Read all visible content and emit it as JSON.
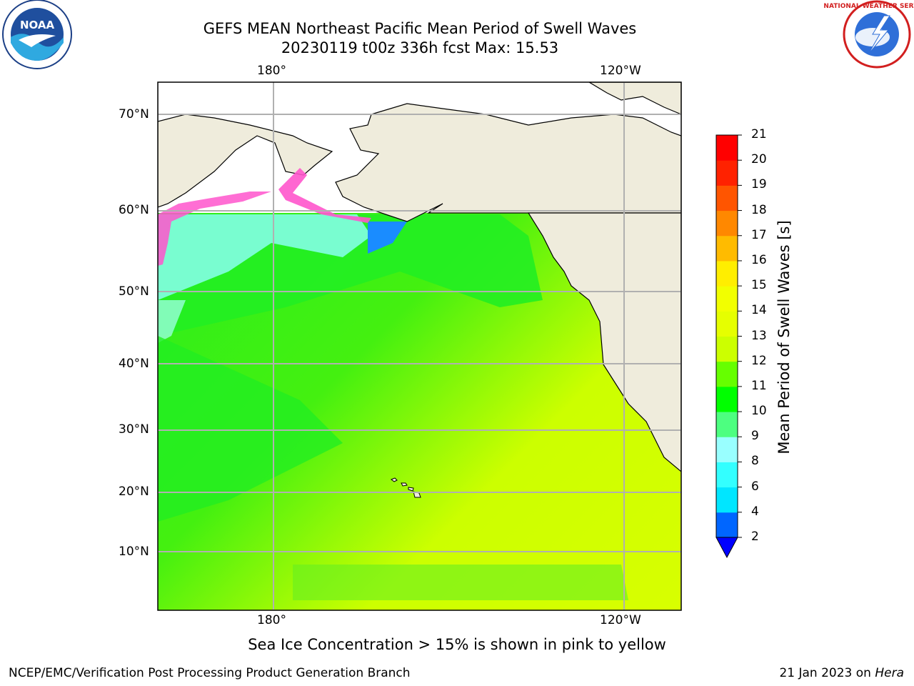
{
  "title": {
    "line1": "GEFS MEAN Northeast Pacific Mean Period of Swell Waves",
    "line2": "20230119 t00z 336h fcst   Max: 15.53"
  },
  "map": {
    "lon_labels_top": [
      "180°",
      "120°W"
    ],
    "lon_labels_bottom": [
      "180°",
      "120°W"
    ],
    "lat_labels": [
      "70°N",
      "60°N",
      "50°N",
      "40°N",
      "30°N",
      "20°N",
      "10°N"
    ],
    "land_color": "#efecdc",
    "grid_color": "#b0b0b0"
  },
  "colorbar": {
    "label": "Mean Period of Swell Waves [s]",
    "ticks": [
      "2",
      "4",
      "6",
      "8",
      "9",
      "10",
      "11",
      "12",
      "13",
      "14",
      "15",
      "16",
      "17",
      "18",
      "19",
      "20",
      "21"
    ],
    "colors": [
      "#0066ff",
      "#00e6ff",
      "#33ffff",
      "#99ffff",
      "#4dff80",
      "#00ff00",
      "#66ff00",
      "#ccff00",
      "#e6ff00",
      "#f2ff00",
      "#ffee00",
      "#ffbb00",
      "#ff8800",
      "#ff5500",
      "#ff2200",
      "#ff0000"
    ],
    "under_color": "#0000ff"
  },
  "caption": "Sea Ice Concentration > 15% is shown in pink to yellow",
  "footer": {
    "left": "NCEP/EMC/Verification Post Processing Product Generation Branch",
    "right_date": "21 Jan 2023 on ",
    "right_host": "Hera"
  },
  "logos": {
    "noaa": "NOAA",
    "nws": "NATIONAL WEATHER SERVICE"
  }
}
